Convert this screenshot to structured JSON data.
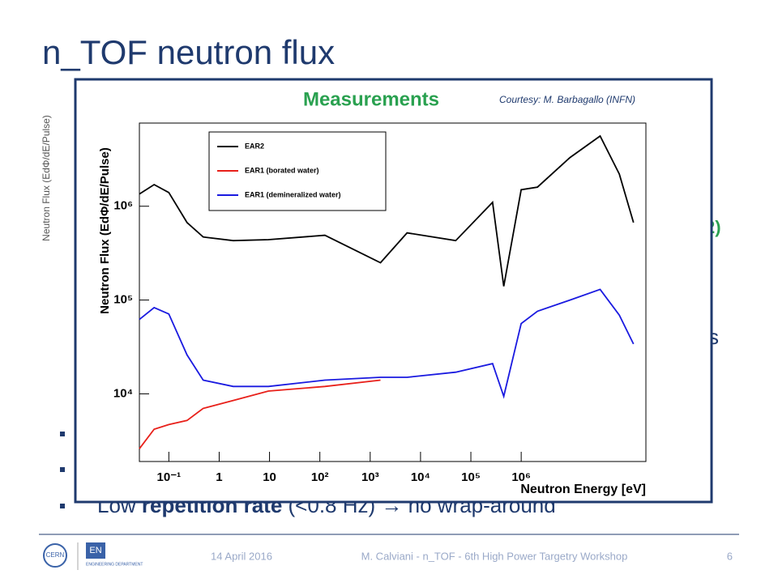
{
  "slide": {
    "title": "n_TOF neutron flux",
    "bg_axis_label": "Neutron Flux (EdΦ/dE/Pulse)",
    "bg_fragment_1": "2)",
    "bg_fragment_2": "s",
    "bullet_pre": "Low ",
    "bullet_bold": "repetition rate",
    "bullet_post": " (<0.8 Hz) → no wrap-around",
    "logo_cern": "CERN",
    "logo_en": "EN",
    "logo_dept": "ENGINEERING DEPARTMENT",
    "footer_date": "14 April 2016",
    "footer_text": "M. Calviani - n_TOF - 6th High Power Targetry Workshop",
    "page": "6"
  },
  "chart_data": {
    "type": "line",
    "title": "Measurements",
    "annotation": "Courtesy: M. Barbagallo (INFN)",
    "x_label": "Neutron Energy [eV]",
    "y_label": "Neutron Flux (EdΦ/dE/Pulse)",
    "xscale": "log",
    "yscale": "log",
    "xlim": [
      0.026,
      300000000
    ],
    "ylim": [
      1900,
      7700000
    ],
    "xticks": [
      {
        "value": 0.1,
        "label": "10⁻¹"
      },
      1,
      10,
      {
        "value": 100,
        "label": "10²"
      },
      {
        "value": 1000,
        "label": "10³"
      },
      {
        "value": 10000,
        "label": "10⁴"
      },
      {
        "value": 100000,
        "label": "10⁵"
      },
      {
        "value": 1000000,
        "label": "10⁶"
      }
    ],
    "yticks": [
      {
        "value": 10000,
        "label": "10⁴"
      },
      {
        "value": 100000,
        "label": "10⁵"
      },
      {
        "value": 1000000,
        "label": "10⁶"
      }
    ],
    "legend": "upper left",
    "x": [
      0.026,
      0.051,
      0.1,
      0.23,
      0.48,
      1.9,
      9.5,
      126,
      1600,
      5400,
      50000,
      270000,
      450000,
      1000000,
      2100000,
      9300000,
      37000000,
      89000000,
      170000000
    ],
    "series": [
      {
        "name": "EAR2",
        "color": "#000000",
        "values": [
          1350000,
          1700000,
          1400000,
          670000,
          470000,
          430000,
          440000,
          490000,
          250000,
          520000,
          430000,
          1100000,
          140000,
          1500000,
          1600000,
          3300000,
          5600000,
          2200000,
          670000
        ]
      },
      {
        "name": "EAR1 (borated water)",
        "color": "#e8201a",
        "values": [
          2600,
          4200,
          4700,
          5200,
          7000,
          8500,
          10700,
          12000,
          14000,
          null,
          null,
          null,
          null,
          null,
          null,
          null,
          null,
          null,
          null
        ]
      },
      {
        "name": "EAR1 (demineralized water)",
        "color": "#1a1ae0",
        "values": [
          62000,
          83000,
          71000,
          26000,
          14000,
          12000,
          12000,
          14000,
          15000,
          15000,
          17000,
          21000,
          9400,
          56000,
          76000,
          100000,
          130000,
          69000,
          34000
        ]
      }
    ]
  }
}
